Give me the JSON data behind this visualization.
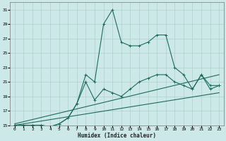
{
  "title": "",
  "xlabel": "Humidex (Indice chaleur)",
  "bg_color": "#cce8e8",
  "grid_color": "#aed0cc",
  "line_color": "#1e6b5e",
  "xlim": [
    -0.5,
    23.5
  ],
  "ylim": [
    15,
    32
  ],
  "xticks": [
    0,
    1,
    2,
    3,
    4,
    5,
    6,
    7,
    8,
    9,
    10,
    11,
    12,
    13,
    14,
    15,
    16,
    17,
    18,
    19,
    20,
    21,
    22,
    23
  ],
  "yticks": [
    15,
    17,
    19,
    21,
    23,
    25,
    27,
    29,
    31
  ],
  "line1_x": [
    0,
    1,
    2,
    3,
    4,
    5,
    6,
    7,
    8,
    9,
    10,
    11,
    12,
    13,
    14,
    15,
    16,
    17,
    18,
    19,
    20,
    21,
    22,
    23
  ],
  "line1_y": [
    15,
    15,
    15,
    15,
    14.8,
    15.2,
    16,
    18,
    22,
    21,
    29,
    31,
    26.5,
    26,
    26,
    26.5,
    27.5,
    27.5,
    23,
    22,
    20,
    22,
    20.5,
    20.5
  ],
  "line2_x": [
    0,
    1,
    2,
    3,
    4,
    5,
    6,
    7,
    8,
    9,
    10,
    11,
    12,
    13,
    14,
    15,
    16,
    17,
    18,
    19,
    20,
    21,
    22,
    23
  ],
  "line2_y": [
    15,
    15,
    15,
    15,
    14.8,
    15.2,
    16,
    18,
    21,
    18.5,
    20,
    19.5,
    19,
    20,
    21,
    21.5,
    22,
    22,
    21,
    20.5,
    20,
    22,
    20,
    20.5
  ],
  "line3_x": [
    0,
    23
  ],
  "line3_y": [
    15.2,
    22.0
  ],
  "line4_x": [
    0,
    23
  ],
  "line4_y": [
    15.0,
    19.5
  ]
}
